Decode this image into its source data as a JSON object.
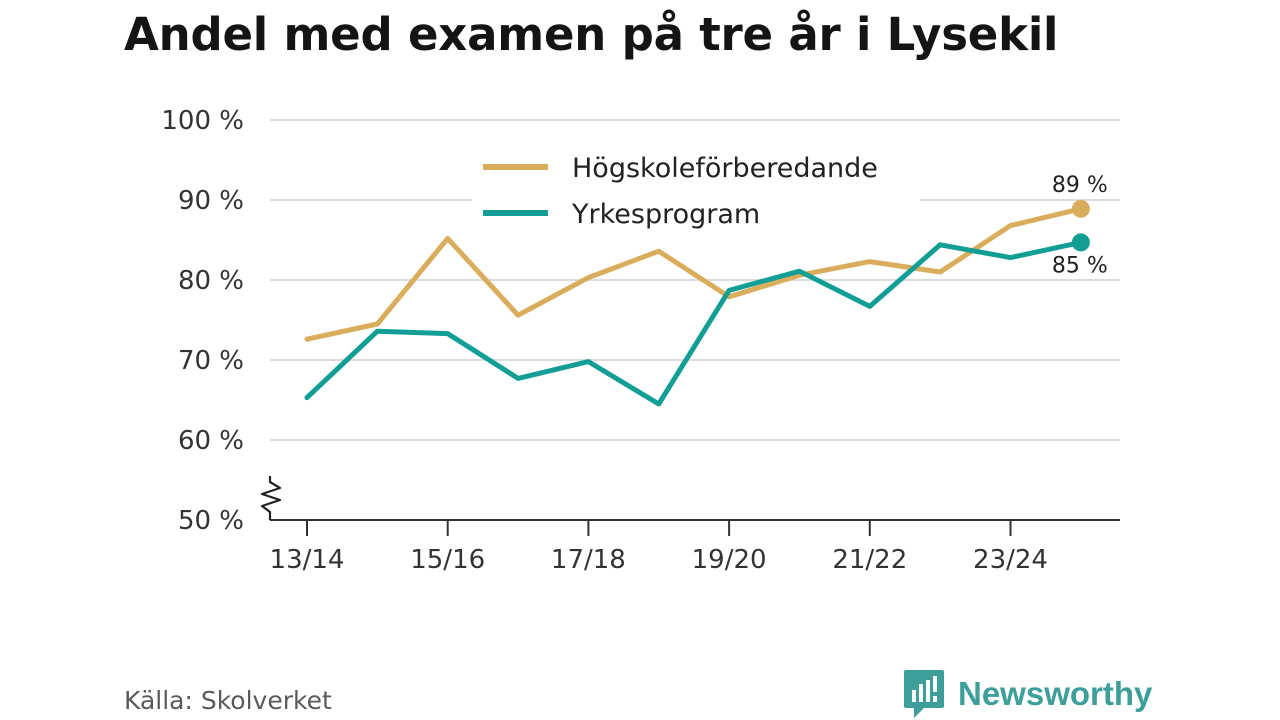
{
  "title": "Andel med examen på tre år i Lysekil",
  "source": "Källa: Skolverket",
  "brand": "Newsworthy",
  "chart_data": {
    "type": "line",
    "title": "Andel med examen på tre år i Lysekil",
    "x": [
      "13/14",
      "14/15",
      "15/16",
      "16/17",
      "17/18",
      "18/19",
      "19/20",
      "20/21",
      "21/22",
      "22/23",
      "23/24",
      "24/25"
    ],
    "x_tick_labels": [
      "13/14",
      "15/16",
      "17/18",
      "19/20",
      "21/22",
      "23/24"
    ],
    "y_tick_labels": [
      "50 %",
      "60 %",
      "70 %",
      "80 %",
      "90 %",
      "100 %"
    ],
    "ylim": [
      50,
      100
    ],
    "y_broken_axis": true,
    "grid": "horizontal",
    "legend_position": "top-center",
    "series": [
      {
        "name": "Högskoleförberedande",
        "color": "#d9ad5b",
        "values": [
          72.6,
          74.5,
          85.2,
          75.6,
          80.3,
          83.6,
          77.9,
          80.6,
          82.3,
          81.0,
          86.8,
          88.9
        ],
        "end_label": "89 %"
      },
      {
        "name": "Yrkesprogram",
        "color": "#129e94",
        "values": [
          65.3,
          73.6,
          73.3,
          67.7,
          69.8,
          64.5,
          78.7,
          81.1,
          76.7,
          84.4,
          82.8,
          84.7
        ],
        "end_label": "85 %"
      }
    ]
  }
}
